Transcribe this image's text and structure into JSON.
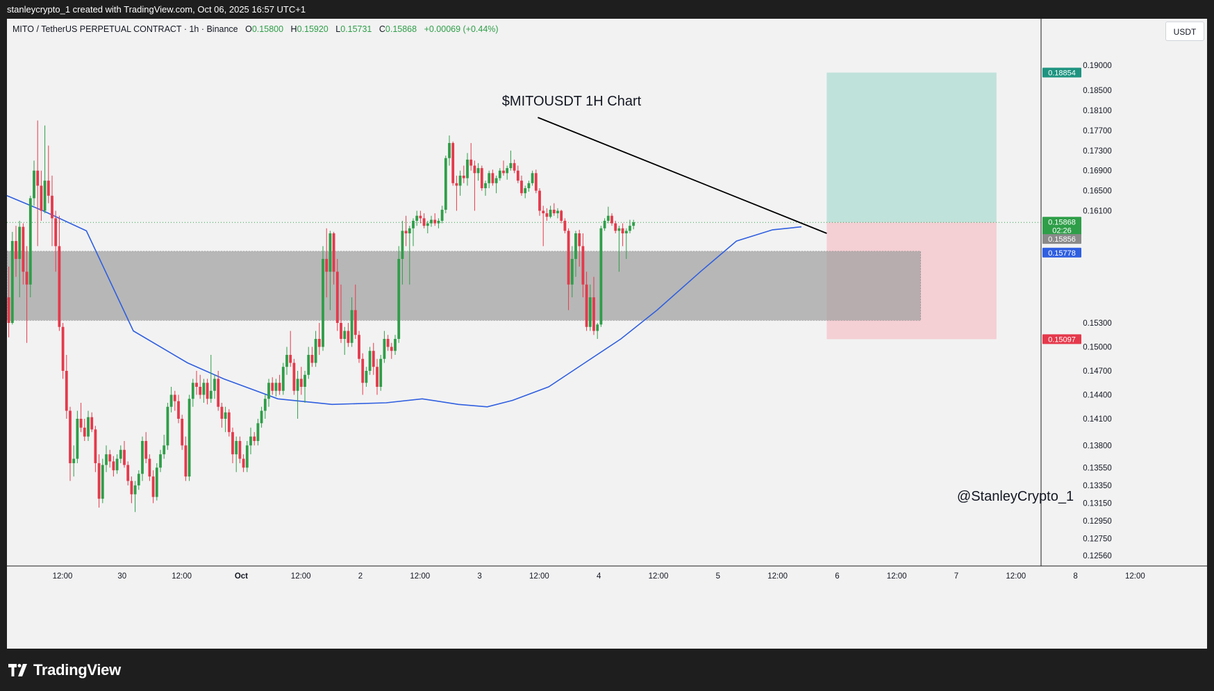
{
  "top_bar": {
    "text": "stanleycrypto_1 created with TradingView.com, Oct 06, 2025 16:57 UTC+1"
  },
  "header": {
    "symbol": "MITO / TetherUS PERPETUAL CONTRACT · 1h · Binance",
    "open_label": "O",
    "open": "0.15800",
    "high_label": "H",
    "high": "0.15920",
    "low_label": "L",
    "low": "0.15731",
    "close_label": "C",
    "close": "0.15868",
    "change": "+0.00069 (+0.44%)"
  },
  "currency": "USDT",
  "branding": {
    "logo_text": "TradingView",
    "logo_icon": "tradingview-logo-icon"
  },
  "colors": {
    "up": "#2e9e48",
    "down": "#e5394b",
    "ma": "#2f5fe0",
    "target_zone": "#bfe2da",
    "stop_zone": "#f4cfd4",
    "support_zone": "#9f9f9f",
    "price_badge_green": "#2e9e48",
    "price_badge_red": "#e5394b",
    "price_badge_blue": "#2f5fe0",
    "price_badge_gray": "#8a8a8a",
    "price_badge_teal": "#1e9480"
  },
  "chart_data": {
    "type": "candlestick",
    "title": "$MITOUSDT 1H Chart",
    "watermark": "@StanleyCrypto_1",
    "timeframe": "1h",
    "y_ticks": [
      "0.19000",
      "0.18500",
      "0.18100",
      "0.17700",
      "0.17300",
      "0.16900",
      "0.16500",
      "0.16100",
      "0.15300",
      "0.15000",
      "0.14700",
      "0.14400",
      "0.14100",
      "0.13800",
      "0.13550",
      "0.13350",
      "0.13150",
      "0.12950",
      "0.12750",
      "0.12560"
    ],
    "x_ticks": [
      "12:00",
      "30",
      "12:00",
      "Oct",
      "12:00",
      "2",
      "12:00",
      "3",
      "12:00",
      "4",
      "12:00",
      "5",
      "12:00",
      "6",
      "12:00",
      "7",
      "12:00",
      "8",
      "12:00"
    ],
    "price_badges": [
      {
        "value": "0.18854",
        "kind": "target"
      },
      {
        "value": "0.15868",
        "kind": "last"
      },
      {
        "value": "02:26",
        "kind": "countdown"
      },
      {
        "value": "0.15856",
        "kind": "mark"
      },
      {
        "value": "0.15778",
        "kind": "ma"
      },
      {
        "value": "0.15097",
        "kind": "stop"
      }
    ],
    "last_price": 0.15868,
    "long_position": {
      "entry": 0.15868,
      "target": 0.18854,
      "stop": 0.15097
    },
    "support_zone": {
      "top": 0.1558,
      "bottom": 0.1531
    },
    "trendline": {
      "start": {
        "bar": 147,
        "price": 0.1796
      },
      "end": {
        "bar": 227,
        "price": 0.1565
      }
    },
    "moving_average_anchors": [
      [
        0,
        0.164
      ],
      [
        10,
        0.161
      ],
      [
        22,
        0.157
      ],
      [
        35,
        0.152
      ],
      [
        50,
        0.148
      ],
      [
        60,
        0.146
      ],
      [
        75,
        0.1435
      ],
      [
        90,
        0.1428
      ],
      [
        105,
        0.143
      ],
      [
        115,
        0.1435
      ],
      [
        125,
        0.1428
      ],
      [
        133,
        0.1425
      ],
      [
        140,
        0.1433
      ],
      [
        150,
        0.145
      ],
      [
        160,
        0.148
      ],
      [
        170,
        0.151
      ],
      [
        180,
        0.1535
      ],
      [
        192,
        0.155
      ],
      [
        202,
        0.1562
      ],
      [
        212,
        0.1572
      ],
      [
        220,
        0.1578
      ]
    ],
    "candles": [
      [
        0.154,
        0.1552,
        0.1512,
        0.153
      ],
      [
        0.153,
        0.1568,
        0.1528,
        0.1562
      ],
      [
        0.1562,
        0.158,
        0.1548,
        0.1555
      ],
      [
        0.1555,
        0.159,
        0.154,
        0.1578
      ],
      [
        0.1578,
        0.1585,
        0.1545,
        0.155
      ],
      [
        0.155,
        0.156,
        0.1505,
        0.1545
      ],
      [
        0.1545,
        0.164,
        0.154,
        0.1635
      ],
      [
        0.1635,
        0.171,
        0.162,
        0.169
      ],
      [
        0.169,
        0.179,
        0.156,
        0.166
      ],
      [
        0.166,
        0.169,
        0.159,
        0.161
      ],
      [
        0.161,
        0.178,
        0.1605,
        0.167
      ],
      [
        0.167,
        0.174,
        0.1625,
        0.164
      ],
      [
        0.164,
        0.168,
        0.156,
        0.1595
      ],
      [
        0.1595,
        0.161,
        0.155,
        0.156
      ],
      [
        0.156,
        0.16,
        0.152,
        0.1525
      ],
      [
        0.1525,
        0.153,
        0.146,
        0.147
      ],
      [
        0.147,
        0.149,
        0.141,
        0.142
      ],
      [
        0.142,
        0.1425,
        0.134,
        0.136
      ],
      [
        0.136,
        0.138,
        0.1345,
        0.1365
      ],
      [
        0.1365,
        0.142,
        0.136,
        0.141
      ],
      [
        0.141,
        0.143,
        0.1395,
        0.14
      ],
      [
        0.14,
        0.141,
        0.1385,
        0.139
      ],
      [
        0.139,
        0.142,
        0.1385,
        0.1412
      ],
      [
        0.1412,
        0.1418,
        0.1395,
        0.1398
      ],
      [
        0.1398,
        0.1402,
        0.135,
        0.136
      ],
      [
        0.136,
        0.137,
        0.131,
        0.132
      ],
      [
        0.132,
        0.1365,
        0.1315,
        0.1358
      ],
      [
        0.1358,
        0.138,
        0.135,
        0.137
      ],
      [
        0.137,
        0.1375,
        0.1355,
        0.1362
      ],
      [
        0.1362,
        0.1368,
        0.1345,
        0.1352
      ],
      [
        0.1352,
        0.137,
        0.1348,
        0.1365
      ],
      [
        0.1365,
        0.138,
        0.136,
        0.1375
      ],
      [
        0.1375,
        0.1385,
        0.1355,
        0.1358
      ],
      [
        0.1358,
        0.1362,
        0.1335,
        0.134
      ],
      [
        0.134,
        0.1345,
        0.1315,
        0.1325
      ],
      [
        0.1325,
        0.134,
        0.1305,
        0.1335
      ],
      [
        0.1335,
        0.1352,
        0.133,
        0.1348
      ],
      [
        0.1348,
        0.139,
        0.134,
        0.1385
      ],
      [
        0.1385,
        0.1395,
        0.136,
        0.1365
      ],
      [
        0.1365,
        0.137,
        0.134,
        0.1345
      ],
      [
        0.1345,
        0.1352,
        0.1315,
        0.1322
      ],
      [
        0.1322,
        0.136,
        0.1318,
        0.1355
      ],
      [
        0.1355,
        0.1375,
        0.135,
        0.137
      ],
      [
        0.137,
        0.1392,
        0.1365,
        0.138
      ],
      [
        0.138,
        0.143,
        0.1375,
        0.1425
      ],
      [
        0.1425,
        0.145,
        0.1418,
        0.144
      ],
      [
        0.144,
        0.1445,
        0.142,
        0.1432
      ],
      [
        0.1432,
        0.144,
        0.1405,
        0.141
      ],
      [
        0.141,
        0.1415,
        0.1375,
        0.138
      ],
      [
        0.138,
        0.139,
        0.134,
        0.1345
      ],
      [
        0.1345,
        0.144,
        0.134,
        0.1435
      ],
      [
        0.1435,
        0.146,
        0.1425,
        0.1455
      ],
      [
        0.1455,
        0.147,
        0.144,
        0.145
      ],
      [
        0.145,
        0.1465,
        0.1435,
        0.144
      ],
      [
        0.144,
        0.146,
        0.143,
        0.1455
      ],
      [
        0.1455,
        0.146,
        0.1428,
        0.1435
      ],
      [
        0.1435,
        0.149,
        0.143,
        0.1445
      ],
      [
        0.1445,
        0.1465,
        0.1435,
        0.146
      ],
      [
        0.146,
        0.147,
        0.142,
        0.1425
      ],
      [
        0.1425,
        0.143,
        0.14,
        0.141
      ],
      [
        0.141,
        0.1425,
        0.1395,
        0.1418
      ],
      [
        0.1418,
        0.1422,
        0.139,
        0.1395
      ],
      [
        0.1395,
        0.14,
        0.136,
        0.137
      ],
      [
        0.137,
        0.139,
        0.135,
        0.1385
      ],
      [
        0.1385,
        0.139,
        0.136,
        0.1365
      ],
      [
        0.1365,
        0.137,
        0.135,
        0.1355
      ],
      [
        0.1355,
        0.1385,
        0.135,
        0.138
      ],
      [
        0.138,
        0.14,
        0.137,
        0.139
      ],
      [
        0.139,
        0.1395,
        0.138,
        0.1385
      ],
      [
        0.1385,
        0.141,
        0.138,
        0.1405
      ],
      [
        0.1405,
        0.1425,
        0.14,
        0.142
      ],
      [
        0.142,
        0.144,
        0.141,
        0.1435
      ],
      [
        0.1435,
        0.146,
        0.1425,
        0.1455
      ],
      [
        0.1455,
        0.1462,
        0.144,
        0.1445
      ],
      [
        0.1445,
        0.146,
        0.1438,
        0.1455
      ],
      [
        0.1455,
        0.1465,
        0.144,
        0.1445
      ],
      [
        0.1445,
        0.148,
        0.144,
        0.1475
      ],
      [
        0.1475,
        0.15,
        0.1465,
        0.149
      ],
      [
        0.149,
        0.152,
        0.1475,
        0.148
      ],
      [
        0.148,
        0.1485,
        0.144,
        0.1445
      ],
      [
        0.1445,
        0.147,
        0.141,
        0.146
      ],
      [
        0.146,
        0.1475,
        0.144,
        0.145
      ],
      [
        0.145,
        0.147,
        0.143,
        0.1465
      ],
      [
        0.1465,
        0.15,
        0.146,
        0.149
      ],
      [
        0.149,
        0.15,
        0.1475,
        0.148
      ],
      [
        0.148,
        0.152,
        0.1475,
        0.151
      ],
      [
        0.151,
        0.153,
        0.149,
        0.15
      ],
      [
        0.15,
        0.156,
        0.1495,
        0.1555
      ],
      [
        0.1555,
        0.1575,
        0.154,
        0.155
      ],
      [
        0.155,
        0.157,
        0.1535,
        0.1565
      ],
      [
        0.1565,
        0.1568,
        0.1545,
        0.155
      ],
      [
        0.155,
        0.1555,
        0.152,
        0.153
      ],
      [
        0.153,
        0.1545,
        0.1505,
        0.151
      ],
      [
        0.151,
        0.1525,
        0.149,
        0.152
      ],
      [
        0.152,
        0.153,
        0.15,
        0.1505
      ],
      [
        0.1505,
        0.154,
        0.15,
        0.1535
      ],
      [
        0.1535,
        0.1545,
        0.151,
        0.1515
      ],
      [
        0.1515,
        0.152,
        0.148,
        0.1485
      ],
      [
        0.1485,
        0.1492,
        0.144,
        0.1455
      ],
      [
        0.1455,
        0.1475,
        0.145,
        0.147
      ],
      [
        0.147,
        0.15,
        0.1465,
        0.1495
      ],
      [
        0.1495,
        0.1505,
        0.1465,
        0.1475
      ],
      [
        0.1475,
        0.1485,
        0.144,
        0.145
      ],
      [
        0.145,
        0.149,
        0.1445,
        0.1485
      ],
      [
        0.1485,
        0.152,
        0.148,
        0.151
      ],
      [
        0.151,
        0.1515,
        0.1495,
        0.15
      ],
      [
        0.15,
        0.1505,
        0.1485,
        0.1495
      ],
      [
        0.1495,
        0.1515,
        0.149,
        0.151
      ],
      [
        0.151,
        0.156,
        0.1505,
        0.1555
      ],
      [
        0.1555,
        0.159,
        0.1545,
        0.157
      ],
      [
        0.157,
        0.16,
        0.156,
        0.1565
      ],
      [
        0.1565,
        0.158,
        0.1545,
        0.1575
      ],
      [
        0.1575,
        0.1595,
        0.156,
        0.159
      ],
      [
        0.159,
        0.161,
        0.158,
        0.16
      ],
      [
        0.16,
        0.161,
        0.1585,
        0.1595
      ],
      [
        0.1595,
        0.1605,
        0.1575,
        0.158
      ],
      [
        0.158,
        0.159,
        0.1565,
        0.1585
      ],
      [
        0.1585,
        0.16,
        0.1578,
        0.1592
      ],
      [
        0.1592,
        0.1605,
        0.158,
        0.1585
      ],
      [
        0.1585,
        0.1595,
        0.1575,
        0.159
      ],
      [
        0.159,
        0.162,
        0.1585,
        0.1612
      ],
      [
        0.1612,
        0.172,
        0.1605,
        0.1715
      ],
      [
        0.1715,
        0.176,
        0.17,
        0.1745
      ],
      [
        0.1745,
        0.1748,
        0.166,
        0.1665
      ],
      [
        0.1665,
        0.168,
        0.161,
        0.166
      ],
      [
        0.166,
        0.169,
        0.164,
        0.168
      ],
      [
        0.168,
        0.17,
        0.1665,
        0.1675
      ],
      [
        0.1675,
        0.1725,
        0.166,
        0.1712
      ],
      [
        0.1712,
        0.1745,
        0.169,
        0.17
      ],
      [
        0.17,
        0.171,
        0.161,
        0.1685
      ],
      [
        0.1685,
        0.1705,
        0.167,
        0.1695
      ],
      [
        0.1695,
        0.17,
        0.165,
        0.1655
      ],
      [
        0.1655,
        0.167,
        0.164,
        0.1665
      ],
      [
        0.1665,
        0.169,
        0.1655,
        0.1685
      ],
      [
        0.1685,
        0.1692,
        0.166,
        0.1665
      ],
      [
        0.1665,
        0.168,
        0.1645,
        0.1675
      ],
      [
        0.1675,
        0.1695,
        0.167,
        0.169
      ],
      [
        0.169,
        0.171,
        0.168,
        0.1685
      ],
      [
        0.1685,
        0.17,
        0.1672,
        0.1695
      ],
      [
        0.1695,
        0.173,
        0.169,
        0.1705
      ],
      [
        0.1705,
        0.1712,
        0.1685,
        0.169
      ],
      [
        0.169,
        0.17,
        0.1665,
        0.167
      ],
      [
        0.167,
        0.168,
        0.164,
        0.1645
      ],
      [
        0.1645,
        0.166,
        0.1635,
        0.1655
      ],
      [
        0.1655,
        0.167,
        0.1648,
        0.1665
      ],
      [
        0.1665,
        0.169,
        0.166,
        0.1685
      ],
      [
        0.1685,
        0.1692,
        0.1645,
        0.165
      ],
      [
        0.165,
        0.1655,
        0.16,
        0.161
      ],
      [
        0.161,
        0.162,
        0.156,
        0.1605
      ],
      [
        0.1605,
        0.1615,
        0.159,
        0.1598
      ],
      [
        0.1598,
        0.162,
        0.1595,
        0.1612
      ],
      [
        0.1612,
        0.1625,
        0.16,
        0.1605
      ],
      [
        0.1605,
        0.1615,
        0.1595,
        0.161
      ],
      [
        0.161,
        0.1612,
        0.1585,
        0.159
      ],
      [
        0.159,
        0.1595,
        0.1565,
        0.157
      ],
      [
        0.157,
        0.1575,
        0.1535,
        0.1545
      ],
      [
        0.1545,
        0.156,
        0.154,
        0.1555
      ],
      [
        0.1555,
        0.157,
        0.1548,
        0.1565
      ],
      [
        0.1565,
        0.1572,
        0.1552,
        0.156
      ],
      [
        0.156,
        0.1565,
        0.154,
        0.1545
      ],
      [
        0.1545,
        0.155,
        0.152,
        0.1525
      ],
      [
        0.1525,
        0.1545,
        0.152,
        0.154
      ],
      [
        0.154,
        0.1548,
        0.1515,
        0.152
      ],
      [
        0.152,
        0.153,
        0.151,
        0.1528
      ],
      [
        0.1528,
        0.158,
        0.1525,
        0.1575
      ],
      [
        0.1575,
        0.1595,
        0.157,
        0.159
      ],
      [
        0.159,
        0.1618,
        0.1585,
        0.16
      ],
      [
        0.16,
        0.1605,
        0.158,
        0.1585
      ],
      [
        0.1585,
        0.159,
        0.1565,
        0.157
      ],
      [
        0.157,
        0.158,
        0.155,
        0.1575
      ],
      [
        0.1575,
        0.1585,
        0.156,
        0.1565
      ],
      [
        0.1565,
        0.1575,
        0.1555,
        0.157
      ],
      [
        0.157,
        0.1592,
        0.1565,
        0.158
      ],
      [
        0.158,
        0.1592,
        0.1573,
        0.1587
      ]
    ]
  }
}
